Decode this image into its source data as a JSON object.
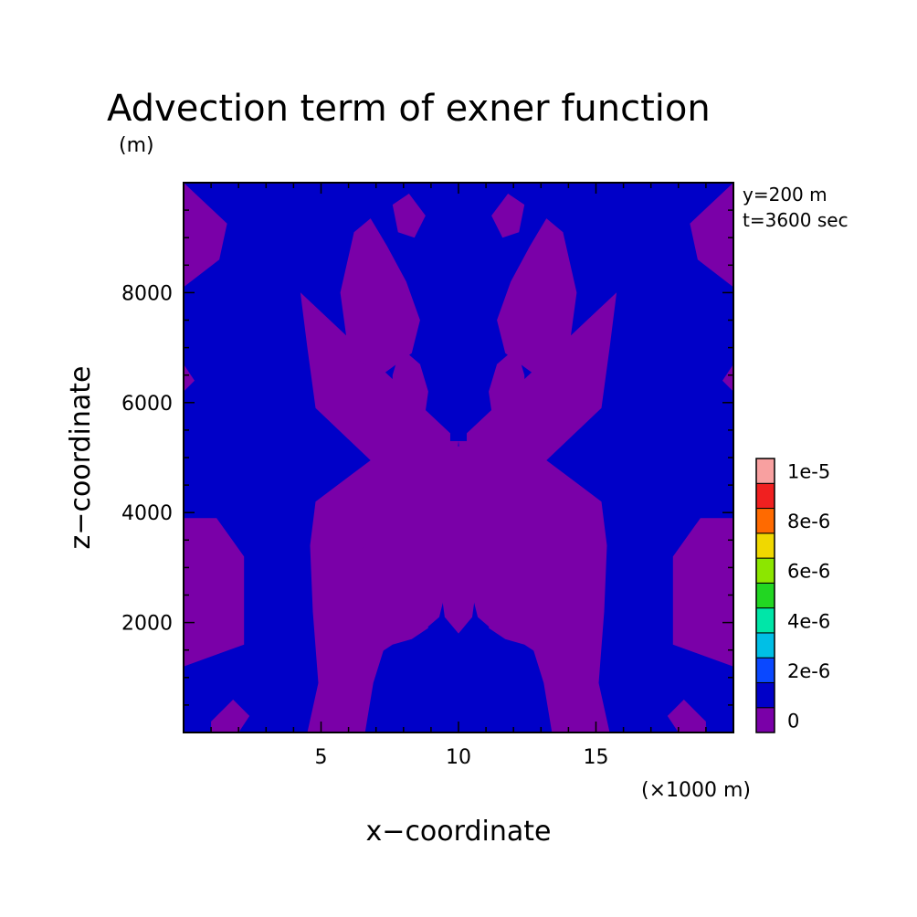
{
  "chart_data": {
    "type": "heatmap",
    "title": "Advection term of exner function",
    "units_label": "(m)",
    "xlabel": "x−coordinate",
    "ylabel": "z−coordinate",
    "x_scale_label": "(×1000 m)",
    "annotations": [
      "y=200 m",
      "t=3600 sec"
    ],
    "xlim": [
      0,
      20
    ],
    "ylim": [
      0,
      10000
    ],
    "x_ticks": [
      5,
      10,
      15
    ],
    "y_ticks": [
      2000,
      4000,
      6000,
      8000
    ],
    "x_tick_labels": [
      "5",
      "10",
      "15"
    ],
    "y_tick_labels": [
      "2000",
      "4000",
      "6000",
      "8000"
    ],
    "field_levels": {
      "background": "0",
      "dominant_band": "0 to 1e-6",
      "note": "Field is mirror-symmetric about x=10; values lie in the two lowest bands (purple and dark blue)."
    },
    "colorbar": {
      "levels": [
        "0",
        "2e-6",
        "4e-6",
        "6e-6",
        "8e-6",
        "1e-5"
      ],
      "colors": [
        "#7a00a8",
        "#0000c8",
        "#0a48ff",
        "#00bfe6",
        "#00e6a8",
        "#22d622",
        "#8ce600",
        "#f0d800",
        "#ff6a00",
        "#f02020",
        "#f8a0a0"
      ]
    }
  },
  "colors": {
    "purple": "#7a00a8",
    "blue": "#0000c8",
    "frame": "#000000",
    "background": "#ffffff"
  }
}
